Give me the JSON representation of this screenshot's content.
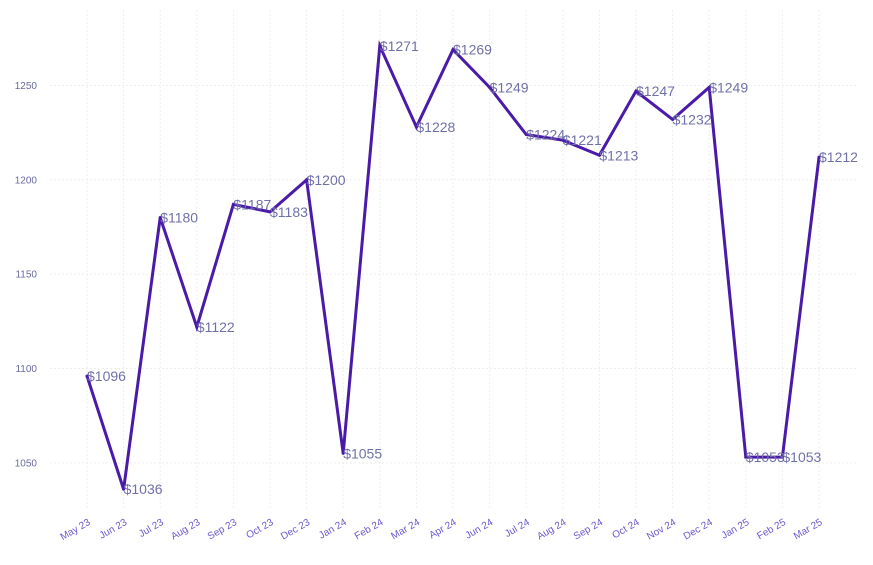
{
  "chart_data": {
    "type": "line",
    "title": "",
    "xlabel": "",
    "ylabel": "",
    "categories": [
      "May 23",
      "Jun 23",
      "Jul 23",
      "Aug 23",
      "Sep 23",
      "Oct 23",
      "Dec 23",
      "Jan 24",
      "Feb 24",
      "Mar 24",
      "Apr 24",
      "Jun 24",
      "Jul 24",
      "Aug 24",
      "Sep 24",
      "Oct 24",
      "Nov 24",
      "Dec 24",
      "Jan 25",
      "Feb 25",
      "Mar 25"
    ],
    "series": [
      {
        "name": "Value",
        "values": [
          1096,
          1036,
          1180,
          1122,
          1187,
          1183,
          1200,
          1055,
          1271,
          1228,
          1269,
          1249,
          1224,
          1221,
          1213,
          1247,
          1232,
          1249,
          1053,
          1053,
          1212
        ],
        "labels": [
          "$1096",
          "$1036",
          "$1180",
          "$1122",
          "$1187",
          "$1183",
          "$1200",
          "$1055",
          "$1271",
          "$1228",
          "$1269",
          "$1249",
          "$1224",
          "$1221",
          "$1213",
          "$1247",
          "$1232",
          "$1249",
          "$1053",
          "$1053",
          "$1212"
        ]
      }
    ],
    "y_ticks": [
      1050,
      1100,
      1150,
      1200,
      1250
    ],
    "ylim": [
      1025,
      1290
    ],
    "grid": true,
    "legend": "none"
  },
  "colors": {
    "line": "#4a1aa8",
    "grid": "#eeeeee",
    "data_label": "#7070a8",
    "tick_label": "#6a5acd"
  }
}
